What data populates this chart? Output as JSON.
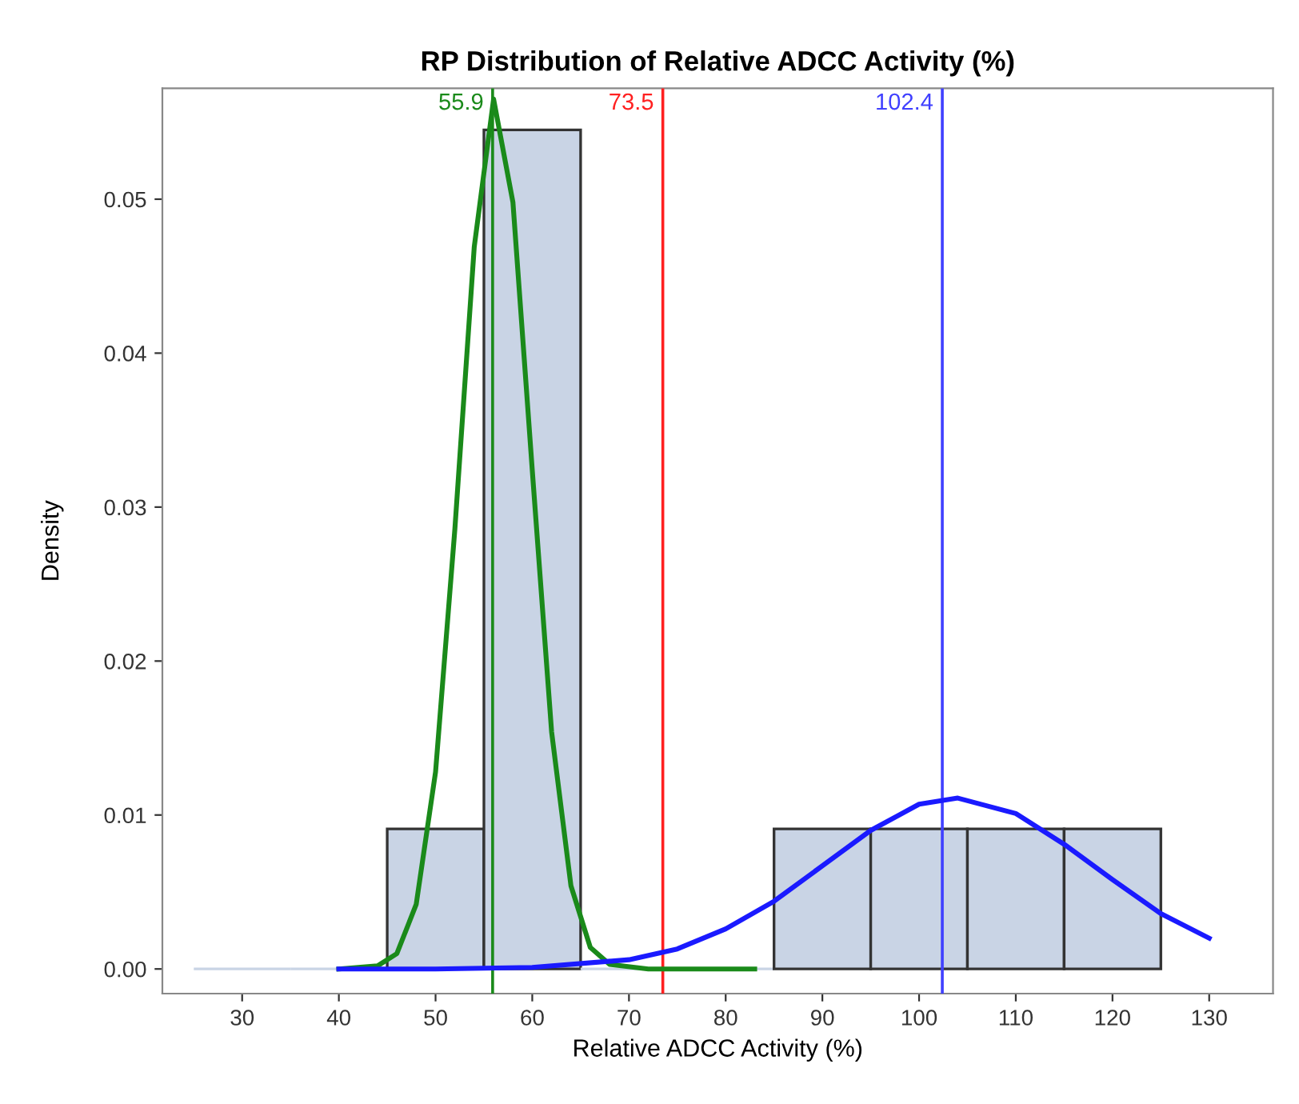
{
  "chart_data": {
    "type": "histogram",
    "title": "RP Distribution of Relative ADCC Activity (%)",
    "xlabel": "Relative ADCC Activity (%)",
    "ylabel": "Density",
    "bins": [
      25,
      35,
      45,
      55,
      65,
      75,
      85,
      95,
      105,
      115,
      125
    ],
    "values": [
      0.0,
      0.0,
      0.0091,
      0.0545,
      0.0,
      0.0,
      0.0091,
      0.0091,
      0.0091,
      0.0091
    ],
    "color": "#c9d4e5",
    "series": [
      {
        "type": "line",
        "color": "#1a8a1a",
        "x": [
          40,
          44,
          46,
          48,
          50,
          52,
          54,
          56,
          58,
          60,
          62,
          64,
          66,
          68,
          72,
          83
        ],
        "values": [
          0.0,
          0.0002,
          0.001,
          0.0042,
          0.0128,
          0.0286,
          0.0469,
          0.0565,
          0.0498,
          0.0324,
          0.0154,
          0.0054,
          0.0014,
          0.0003,
          0.0,
          0.0
        ]
      },
      {
        "type": "line",
        "color": "#1a1aff",
        "x": [
          40,
          50,
          60,
          70,
          75,
          80,
          85,
          90,
          95,
          100,
          104,
          110,
          115,
          120,
          125,
          130
        ],
        "values": [
          0.0,
          0.0,
          0.0001,
          0.0006,
          0.0013,
          0.0026,
          0.0044,
          0.0067,
          0.009,
          0.0107,
          0.0111,
          0.0101,
          0.0081,
          0.0058,
          0.0036,
          0.002
        ]
      }
    ],
    "ref_lines": [
      {
        "axis": "x",
        "value": 55.9,
        "label": "55.9",
        "color": "#1a8a1a"
      },
      {
        "axis": "x",
        "value": 73.5,
        "label": "73.5",
        "color": "#ff2020"
      },
      {
        "axis": "x",
        "value": 102.4,
        "label": "102.4",
        "color": "#4040ff"
      }
    ],
    "xlim": [
      21.75,
      136.6
    ],
    "ylim": [
      -0.0016,
      0.0572
    ],
    "xticks": [
      30,
      40,
      50,
      60,
      70,
      80,
      90,
      100,
      110,
      120,
      130
    ],
    "yticks": [
      {
        "value": 0,
        "label": "0.00"
      },
      {
        "value": 0.01,
        "label": "0.01"
      },
      {
        "value": 0.02,
        "label": "0.02"
      },
      {
        "value": 0.03,
        "label": "0.03"
      },
      {
        "value": 0.04,
        "label": "0.04"
      },
      {
        "value": 0.05,
        "label": "0.05"
      }
    ],
    "grid": false
  }
}
